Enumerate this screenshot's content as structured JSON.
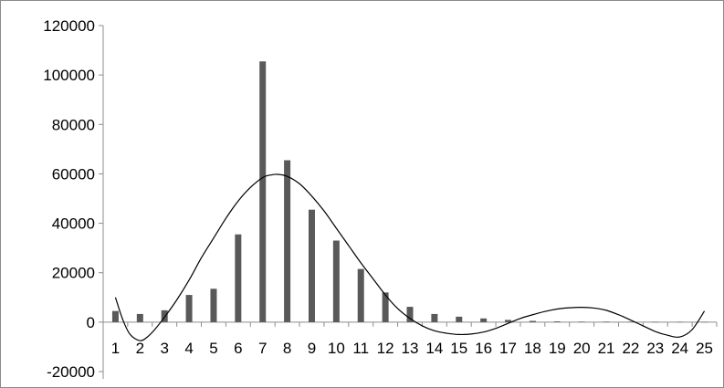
{
  "chart_data": {
    "type": "bar",
    "categories": [
      "1",
      "2",
      "3",
      "4",
      "5",
      "6",
      "7",
      "8",
      "9",
      "10",
      "11",
      "12",
      "13",
      "14",
      "15",
      "16",
      "17",
      "18",
      "19",
      "20",
      "21",
      "22",
      "23",
      "24",
      "25"
    ],
    "series": [
      {
        "type": "bar",
        "values": [
          4500,
          3300,
          4800,
          11000,
          13500,
          35500,
          105500,
          65500,
          45500,
          33000,
          21500,
          12000,
          6200,
          3300,
          2200,
          1500,
          900,
          500,
          300,
          200,
          200,
          150,
          100,
          100,
          100
        ]
      },
      {
        "type": "line",
        "x": [
          1,
          1.3,
          1.6,
          2,
          2.3,
          2.6,
          3,
          3.5,
          4,
          4.5,
          5,
          5.5,
          6,
          6.5,
          7,
          7.3,
          7.6,
          8,
          8.5,
          9,
          9.5,
          10,
          10.5,
          11,
          11.5,
          12,
          12.5,
          13,
          13.5,
          14,
          14.5,
          15,
          15.5,
          16,
          16.5,
          17,
          17.5,
          18,
          18.5,
          19,
          19.5,
          20,
          20.5,
          21,
          21.5,
          22,
          22.5,
          23,
          23.5,
          24,
          24.5,
          25
        ],
        "values": [
          10000,
          1000,
          -5000,
          -7500,
          -6000,
          -3000,
          2000,
          9000,
          17000,
          26000,
          34000,
          42000,
          49000,
          54500,
          58500,
          59500,
          59800,
          59000,
          56000,
          51000,
          45000,
          38000,
          31000,
          24000,
          17500,
          11000,
          5500,
          1500,
          -1500,
          -3500,
          -4500,
          -5000,
          -4800,
          -4000,
          -2500,
          -500,
          1500,
          3000,
          4300,
          5300,
          5800,
          6000,
          5700,
          4800,
          3000,
          800,
          -1500,
          -3800,
          -5300,
          -6000,
          -3000,
          4500
        ]
      }
    ],
    "ylim": [
      -20000,
      120000
    ],
    "yticks": [
      "120000",
      "100000",
      "80000",
      "60000",
      "40000",
      "20000",
      "0",
      "-20000"
    ],
    "grid": false,
    "legend": "none",
    "colors": {
      "bar": "#595959",
      "line": "#000000",
      "axis": "#8c8c8c",
      "frame": "#8c8c8c"
    }
  }
}
